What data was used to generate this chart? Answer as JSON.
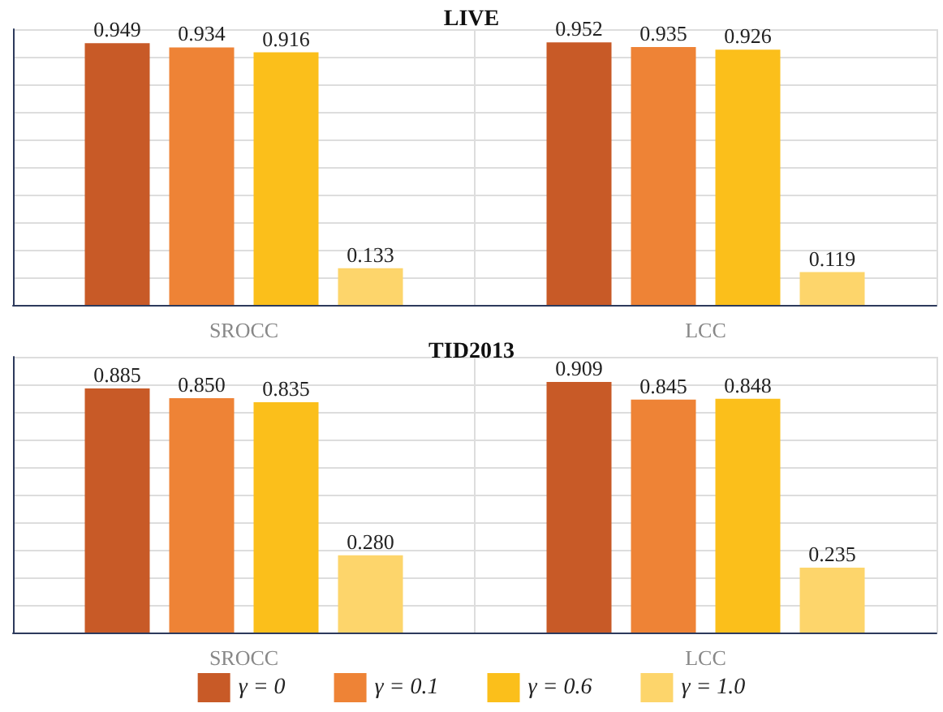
{
  "chart_data": [
    {
      "type": "bar",
      "title": "LIVE",
      "categories": [
        "SROCC",
        "LCC"
      ],
      "series": [
        {
          "color": "#c85a27",
          "values": [
            0.949,
            0.952
          ],
          "value_labels": [
            "0.949",
            "0.952"
          ]
        },
        {
          "color": "#ee8336",
          "values": [
            0.934,
            0.935
          ],
          "value_labels": [
            "0.934",
            "0.935"
          ]
        },
        {
          "color": "#fbbf1b",
          "values": [
            0.916,
            0.926
          ],
          "value_labels": [
            "0.916",
            "0.926"
          ]
        },
        {
          "color": "#fdd56b",
          "values": [
            0.133,
            0.119
          ],
          "value_labels": [
            "0.133",
            "0.119"
          ]
        }
      ],
      "ylim": [
        0,
        1
      ],
      "yticks": [
        0,
        0.1,
        0.2,
        0.3,
        0.4,
        0.5,
        0.6,
        0.7,
        0.8,
        0.9,
        1
      ],
      "tick_labels": "x",
      "grid": true
    },
    {
      "type": "bar",
      "title": "TID2013",
      "categories": [
        "SROCC",
        "LCC"
      ],
      "series": [
        {
          "name": "γ = 0",
          "color": "#c85a27",
          "values": [
            0.885,
            0.909
          ],
          "value_labels": [
            "0.885",
            "0.909"
          ]
        },
        {
          "name": "γ = 0.1",
          "color": "#ee8336",
          "values": [
            0.85,
            0.845
          ],
          "value_labels": [
            "0.850",
            "0.845"
          ]
        },
        {
          "name": "γ = 0.6",
          "color": "#fbbf1b",
          "values": [
            0.835,
            0.848
          ],
          "value_labels": [
            "0.835",
            "0.848"
          ]
        },
        {
          "name": "γ = 1.0",
          "color": "#fdd56b",
          "values": [
            0.28,
            0.235
          ],
          "value_labels": [
            "0.280",
            "0.235"
          ]
        }
      ],
      "ylim": [
        0,
        1
      ],
      "yticks": [
        0,
        0.1,
        0.2,
        0.3,
        0.4,
        0.5,
        0.6,
        0.7,
        0.8,
        0.9,
        1
      ],
      "tick_labels": "x",
      "grid": true,
      "legend": "bottom"
    }
  ]
}
